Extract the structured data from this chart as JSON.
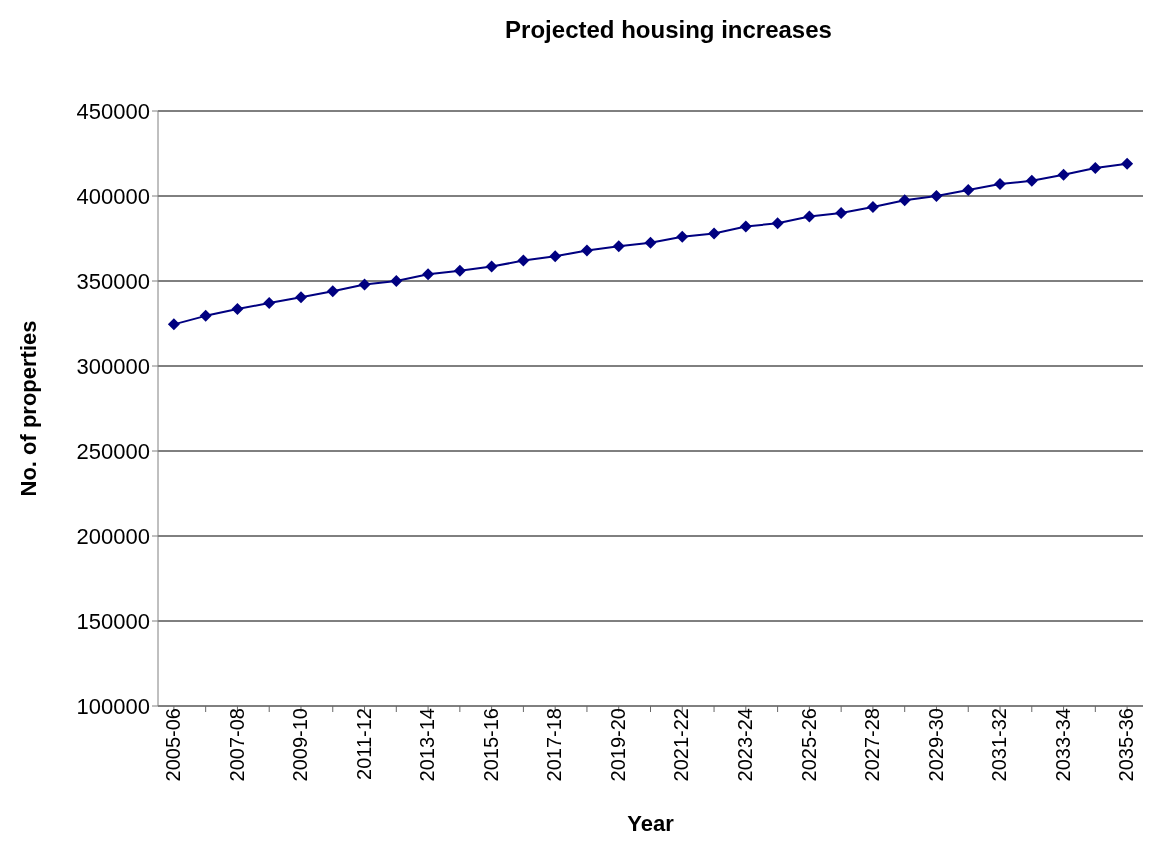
{
  "chart_data": {
    "type": "line",
    "title": "Projected housing increases",
    "xlabel": "Year",
    "ylabel": "No. of properties",
    "categories": [
      "2005-06",
      null,
      "2007-08",
      null,
      "2009-10",
      null,
      "2011-12",
      null,
      "2013-14",
      null,
      "2015-16",
      null,
      "2017-18",
      null,
      "2019-20",
      null,
      "2021-22",
      null,
      "2023-24",
      null,
      "2025-26",
      null,
      "2027-28",
      null,
      "2029-30",
      null,
      "2031-32",
      null,
      "2033-34",
      null,
      "2035-36"
    ],
    "series": [
      {
        "color": "#000080",
        "values": [
          324500,
          329500,
          333500,
          337000,
          340500,
          344000,
          348000,
          350000,
          354000,
          356000,
          358500,
          362000,
          364500,
          368000,
          370500,
          372500,
          376000,
          378000,
          382000,
          384000,
          388000,
          390000,
          393500,
          397500,
          400000,
          403500,
          407000,
          409000,
          412500,
          416500,
          419000
        ]
      }
    ],
    "ylim": [
      100000,
      450000
    ],
    "yticks": [
      100000,
      150000,
      200000,
      250000,
      300000,
      350000,
      400000,
      450000
    ],
    "grid": "y",
    "legend": false,
    "marker": "diamond",
    "line_style": "solid"
  }
}
